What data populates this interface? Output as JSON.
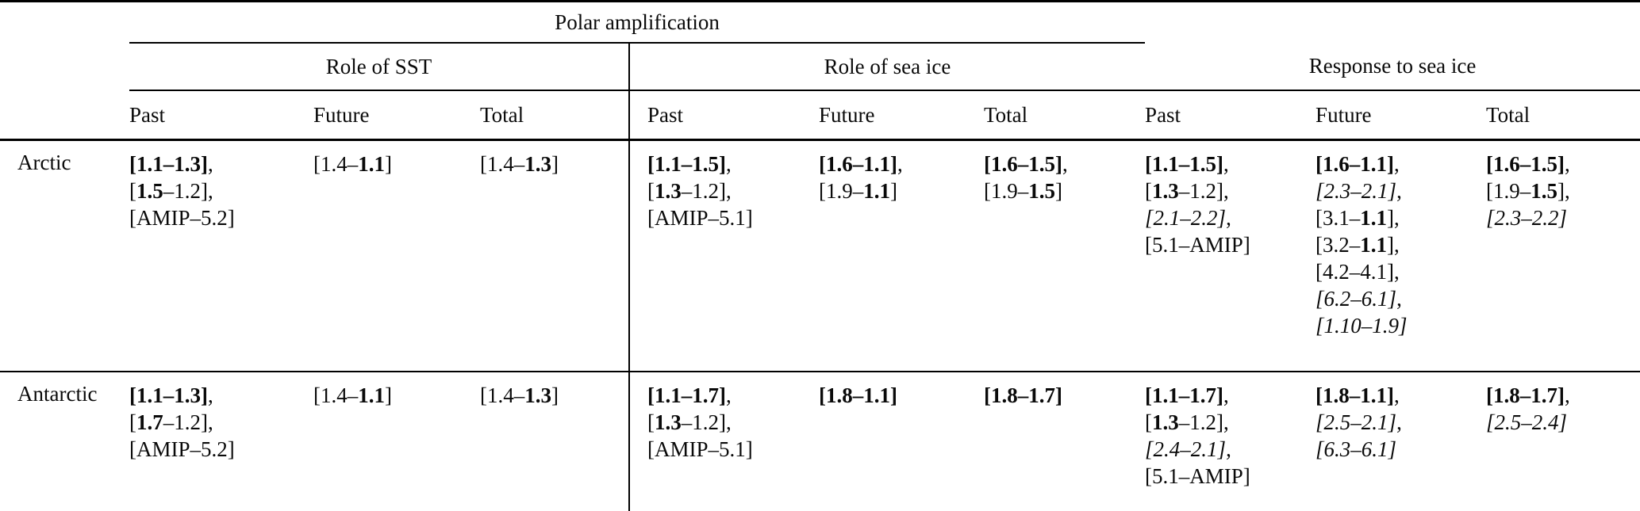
{
  "table": {
    "top_group_header": "Polar amplification",
    "sections": [
      "Role of SST",
      "Role of sea ice",
      "Response to sea ice"
    ],
    "sub_headers": [
      "Past",
      "Future",
      "Total"
    ],
    "colors": {
      "text": "#0a0a0a",
      "rules": "#000000",
      "background": "#ffffff"
    },
    "rows": [
      {
        "region": "Arctic",
        "cells": {
          "sst_past": [
            [
              [
                "[1.1–1.3]",
                "b"
              ],
              [
                ",",
                "r"
              ]
            ],
            [
              [
                "[",
                "r"
              ],
              [
                "1.5",
                "b"
              ],
              [
                "–1.2],",
                "r"
              ]
            ],
            [
              [
                "[AMIP–5.2]",
                "r"
              ]
            ]
          ],
          "sst_future": [
            [
              [
                "[1.4–",
                "r"
              ],
              [
                "1.1",
                "b"
              ],
              [
                "]",
                "r"
              ]
            ]
          ],
          "sst_total": [
            [
              [
                "[1.4–",
                "r"
              ],
              [
                "1.3",
                "b"
              ],
              [
                "]",
                "r"
              ]
            ]
          ],
          "ice_past": [
            [
              [
                "[1.1–1.5]",
                "b"
              ],
              [
                ",",
                "r"
              ]
            ],
            [
              [
                "[",
                "r"
              ],
              [
                "1.3",
                "b"
              ],
              [
                "–1.2],",
                "r"
              ]
            ],
            [
              [
                "[AMIP–5.1]",
                "r"
              ]
            ]
          ],
          "ice_future": [
            [
              [
                "[1.6–1.1]",
                "b"
              ],
              [
                ",",
                "r"
              ]
            ],
            [
              [
                "[1.9–",
                "r"
              ],
              [
                "1.1",
                "b"
              ],
              [
                "]",
                "r"
              ]
            ]
          ],
          "ice_total": [
            [
              [
                "[1.6–1.5]",
                "b"
              ],
              [
                ",",
                "r"
              ]
            ],
            [
              [
                "[1.9–",
                "r"
              ],
              [
                "1.5",
                "b"
              ],
              [
                "]",
                "r"
              ]
            ]
          ],
          "resp_past": [
            [
              [
                "[1.1–1.5]",
                "b"
              ],
              [
                ",",
                "r"
              ]
            ],
            [
              [
                "[",
                "r"
              ],
              [
                "1.3",
                "b"
              ],
              [
                "–1.2],",
                "r"
              ]
            ],
            [
              [
                "[2.1–2.2]",
                "i"
              ],
              [
                ",",
                "r"
              ]
            ],
            [
              [
                "[5.1–AMIP]",
                "r"
              ]
            ]
          ],
          "resp_future": [
            [
              [
                "[1.6–1.1]",
                "b"
              ],
              [
                ",",
                "r"
              ]
            ],
            [
              [
                "[2.3–2.1]",
                "i"
              ],
              [
                ",",
                "r"
              ]
            ],
            [
              [
                "[3.1–",
                "r"
              ],
              [
                "1.1",
                "b"
              ],
              [
                "],",
                "r"
              ]
            ],
            [
              [
                "[3.2–",
                "r"
              ],
              [
                "1.1",
                "b"
              ],
              [
                "],",
                "r"
              ]
            ],
            [
              [
                "[4.2–4.1],",
                "r"
              ]
            ],
            [
              [
                "[6.2–6.1]",
                "i"
              ],
              [
                ",",
                "r"
              ]
            ],
            [
              [
                "[1.10–1.9]",
                "i"
              ]
            ]
          ],
          "resp_total": [
            [
              [
                "[1.6–1.5]",
                "b"
              ],
              [
                ",",
                "r"
              ]
            ],
            [
              [
                "[1.9–",
                "r"
              ],
              [
                "1.5",
                "b"
              ],
              [
                "],",
                "r"
              ]
            ],
            [
              [
                "[2.3–2.2]",
                "i"
              ]
            ]
          ]
        }
      },
      {
        "region": "Antarctic",
        "cells": {
          "sst_past": [
            [
              [
                "[1.1–1.3]",
                "b"
              ],
              [
                ",",
                "r"
              ]
            ],
            [
              [
                "[",
                "r"
              ],
              [
                "1.7",
                "b"
              ],
              [
                "–1.2],",
                "r"
              ]
            ],
            [
              [
                "[AMIP–5.2]",
                "r"
              ]
            ]
          ],
          "sst_future": [
            [
              [
                "[1.4–",
                "r"
              ],
              [
                "1.1",
                "b"
              ],
              [
                "]",
                "r"
              ]
            ]
          ],
          "sst_total": [
            [
              [
                "[1.4–",
                "r"
              ],
              [
                "1.3",
                "b"
              ],
              [
                "]",
                "r"
              ]
            ]
          ],
          "ice_past": [
            [
              [
                "[1.1–1.7]",
                "b"
              ],
              [
                ",",
                "r"
              ]
            ],
            [
              [
                "[",
                "r"
              ],
              [
                "1.3",
                "b"
              ],
              [
                "–1.2],",
                "r"
              ]
            ],
            [
              [
                "[AMIP–5.1]",
                "r"
              ]
            ]
          ],
          "ice_future": [
            [
              [
                "[1.8–1.1]",
                "b"
              ]
            ]
          ],
          "ice_total": [
            [
              [
                "[1.8–1.7]",
                "b"
              ]
            ]
          ],
          "resp_past": [
            [
              [
                "[1.1–1.7]",
                "b"
              ],
              [
                ",",
                "r"
              ]
            ],
            [
              [
                "[",
                "r"
              ],
              [
                "1.3",
                "b"
              ],
              [
                "–1.2],",
                "r"
              ]
            ],
            [
              [
                "[2.4–2.1]",
                "i"
              ],
              [
                ",",
                "r"
              ]
            ],
            [
              [
                "[5.1–AMIP]",
                "r"
              ]
            ]
          ],
          "resp_future": [
            [
              [
                "[1.8–1.1]",
                "b"
              ],
              [
                ",",
                "r"
              ]
            ],
            [
              [
                "[2.5–2.1]",
                "i"
              ],
              [
                ",",
                "r"
              ]
            ],
            [
              [
                "[6.3–6.1]",
                "i"
              ]
            ]
          ],
          "resp_total": [
            [
              [
                "[1.8–1.7]",
                "b"
              ],
              [
                ",",
                "r"
              ]
            ],
            [
              [
                "[2.5–2.4]",
                "i"
              ]
            ]
          ]
        }
      }
    ]
  }
}
